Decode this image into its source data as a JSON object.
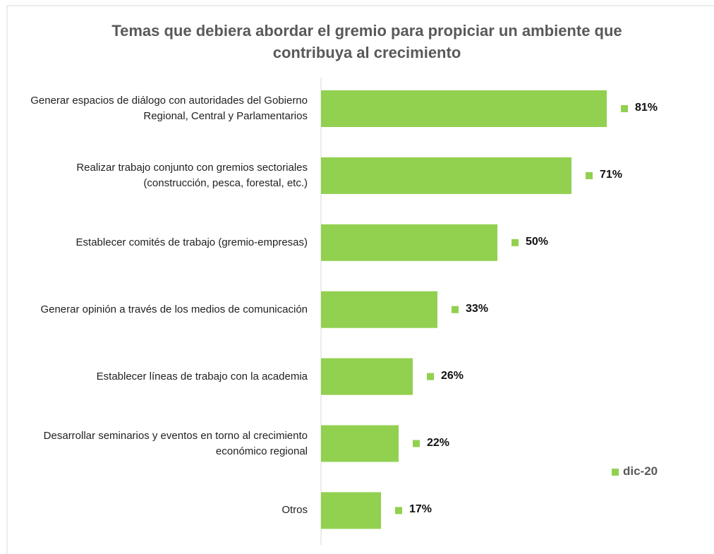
{
  "chart_data": {
    "type": "bar",
    "orientation": "horizontal",
    "title": "Temas que debiera abordar el gremio para propiciar un ambiente que contribuya al crecimiento",
    "categories": [
      "Generar espacios de diálogo con autoridades del Gobierno Regional, Central y Parlamentarios",
      "Realizar trabajo conjunto con gremios sectoriales (construcción, pesca, forestal, etc.)",
      "Establecer comités de trabajo (gremio-empresas)",
      "Generar opinión a través de los medios de comunicación",
      "Establecer líneas de trabajo con la academia",
      "Desarrollar seminarios y eventos en torno al crecimiento económico regional",
      "Otros"
    ],
    "series": [
      {
        "name": "dic-20",
        "color": "#92d050",
        "values": [
          81,
          71,
          50,
          33,
          26,
          22,
          17
        ],
        "value_labels": [
          "81%",
          "71%",
          "50%",
          "33%",
          "26%",
          "22%",
          "17%"
        ]
      }
    ],
    "xlim": [
      0,
      100
    ],
    "legend": "right"
  }
}
